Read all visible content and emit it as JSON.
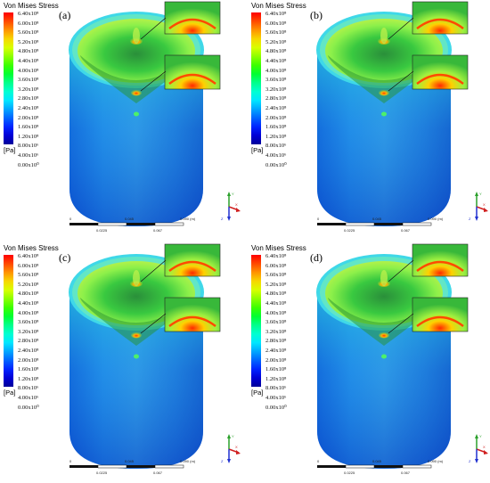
{
  "legend": {
    "title": "Von Mises Stress",
    "ticks": [
      "6.40x10⁸",
      "6.00x10⁸",
      "5.60x10⁸",
      "5.20x10⁸",
      "4.80x10⁸",
      "4.40x10⁸",
      "4.00x10⁸",
      "3.60x10⁸",
      "3.20x10⁸",
      "2.80x10⁸",
      "2.40x10⁸",
      "2.00x10⁸",
      "1.60x10⁸",
      "1.20x10⁸",
      "8.00x10⁶",
      "4.00x10⁶",
      "0.00x10⁰"
    ],
    "unit": "[Pa]",
    "colors": [
      "#ff0000",
      "#ff4a00",
      "#ff9300",
      "#f7d700",
      "#d8ff00",
      "#8cff00",
      "#3cff00",
      "#00ff32",
      "#00ff8c",
      "#00ffd2",
      "#00e6ff",
      "#00a6ff",
      "#0064ff",
      "#0024ff",
      "#0000d6",
      "#00009a"
    ]
  },
  "panels": [
    {
      "label": "(a)"
    },
    {
      "label": "(b)"
    },
    {
      "label": "(c)"
    },
    {
      "label": "(d)"
    }
  ],
  "scalebar": {
    "l0": "0",
    "l1": "0.0225",
    "l2": "0.045",
    "l3": "0.067",
    "l4": "0.090 (m)"
  },
  "axes": {
    "x": "X",
    "y": "Y",
    "z": "Z"
  }
}
